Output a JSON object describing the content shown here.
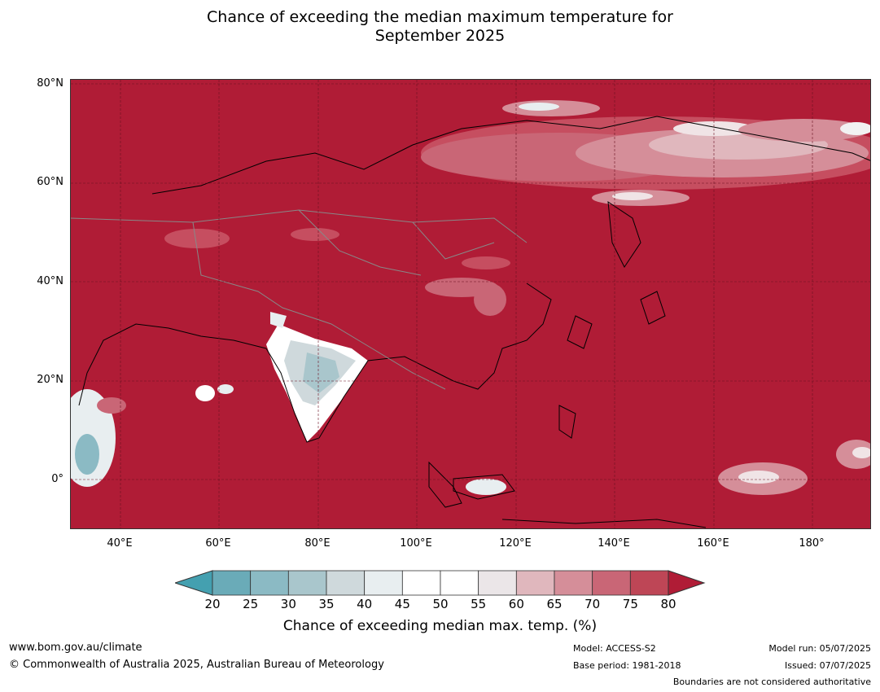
{
  "title": {
    "line1": "Chance of exceeding the median maximum temperature for",
    "line2": "September 2025"
  },
  "map": {
    "lat_labels": [
      "80°N",
      "60°N",
      "40°N",
      "20°N",
      "0°"
    ],
    "lon_labels": [
      "40°E",
      "60°E",
      "80°E",
      "100°E",
      "120°E",
      "140°E",
      "160°E",
      "180°"
    ],
    "lon_range": [
      30,
      192
    ],
    "lat_range": [
      -10,
      81
    ],
    "dominant_color": "#b01c36"
  },
  "colorbar": {
    "ticks": [
      "20",
      "25",
      "30",
      "35",
      "40",
      "45",
      "50",
      "55",
      "60",
      "65",
      "70",
      "75",
      "80"
    ],
    "colors": [
      "#6aabb8",
      "#8bbac4",
      "#a9c6cc",
      "#cfd9dc",
      "#e8eef0",
      "#ffffff",
      "#ffffff",
      "#ebe6e8",
      "#e0b7bd",
      "#d58e99",
      "#c96676",
      "#be4656"
    ],
    "under_color": "#44a0b0",
    "over_color": "#b01c36",
    "label": "Chance of exceeding median max. temp. (%)"
  },
  "footer": {
    "url": "www.bom.gov.au/climate",
    "copyright": "© Commonwealth of Australia 2025, Australian Bureau of Meteorology",
    "model": "Model: ACCESS-S2",
    "base_period": "Base period: 1981-2018",
    "model_run": "Model run: 05/07/2025",
    "issued": "Issued: 07/07/2025",
    "boundaries": "Boundaries are not considered authoritative"
  }
}
